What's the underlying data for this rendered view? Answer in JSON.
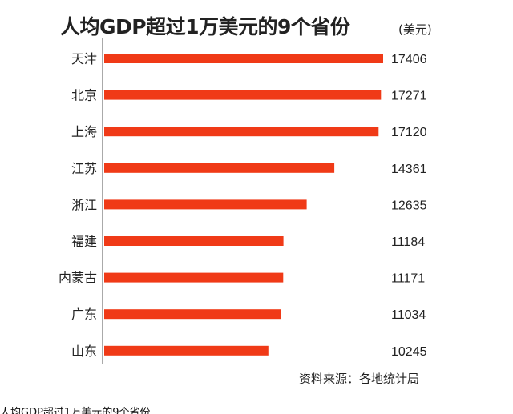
{
  "chart_data": {
    "type": "bar",
    "orientation": "horizontal",
    "title": "人均GDP超过1万美元的9个省份",
    "unit": "(美元)",
    "categories": [
      "天津",
      "北京",
      "上海",
      "江苏",
      "浙江",
      "福建",
      "内蒙古",
      "广东",
      "山东"
    ],
    "values": [
      17406,
      17271,
      17120,
      14361,
      12635,
      11184,
      11171,
      11034,
      10245
    ],
    "value_labels": [
      "17406",
      "17271",
      "17120",
      "14361",
      "12635",
      "11184",
      "11171",
      "11034",
      "10245"
    ],
    "xlabel": "",
    "ylabel": "",
    "grid": false,
    "legend": "none",
    "bar_color": "#f03a17"
  },
  "source": "资料来源：各地统计局",
  "footer_cut_text": "人均GDP超过1万美元的9个省份"
}
